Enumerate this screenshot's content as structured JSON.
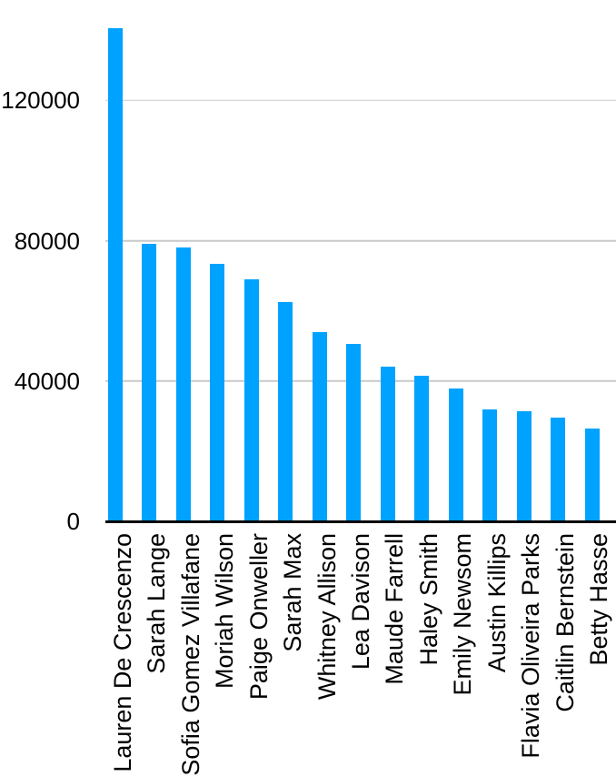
{
  "chart_data": {
    "type": "bar",
    "title": "",
    "xlabel": "",
    "ylabel": "",
    "categories": [
      "Lauren De Crescenzo",
      "Sarah Lange",
      "Sofia Gomez Villafane",
      "Moriah Wilson",
      "Paige Onweller",
      "Sarah Max",
      "Whitney Allison",
      "Lea Davison",
      "Maude Farrell",
      "Haley Smith",
      "Emily Newsom",
      "Austin Killips",
      "Flavia Oliveira Parks",
      "Caitlin Bernstein",
      "Betty Hasse"
    ],
    "values": [
      140500,
      79000,
      78000,
      73500,
      69000,
      62500,
      54000,
      50500,
      44000,
      41500,
      38000,
      32000,
      31500,
      29500,
      26500
    ],
    "ylim": [
      0,
      145000
    ],
    "yticks": [
      {
        "value": 0,
        "label": "0"
      },
      {
        "value": 40000,
        "label": "40000"
      },
      {
        "value": 80000,
        "label": "80000"
      },
      {
        "value": 120000,
        "label": "120000"
      }
    ],
    "grid": true,
    "legend_position": "none",
    "x_label_rotation_deg": -90,
    "colors": {
      "bar": "#00A2FF",
      "gridline": "#C9C9C9",
      "axis": "#000000",
      "text": "#000000",
      "background": "#FFFFFF"
    }
  }
}
